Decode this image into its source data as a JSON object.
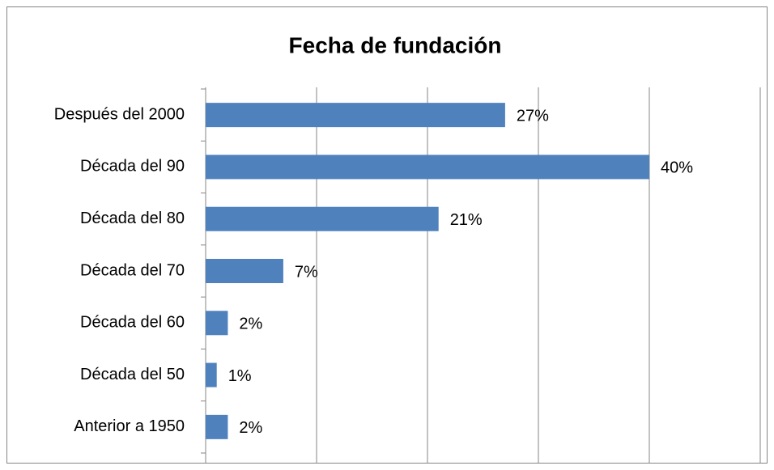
{
  "chart_data": {
    "type": "bar",
    "orientation": "horizontal",
    "title": "Fecha de fundación",
    "categories": [
      "Después del 2000",
      "Década del 90",
      "Década del 80",
      "Década del 70",
      "Década del 60",
      "Década del 50",
      "Anterior a 1950"
    ],
    "values": [
      27,
      40,
      21,
      7,
      2,
      1,
      2
    ],
    "value_labels": [
      "27%",
      "40%",
      "21%",
      "7%",
      "2%",
      "1%",
      "2%"
    ],
    "color": "#4f81bd",
    "xlim": [
      0,
      50
    ],
    "xticks": [
      0,
      10,
      20,
      30,
      40,
      50
    ],
    "grid": true
  }
}
